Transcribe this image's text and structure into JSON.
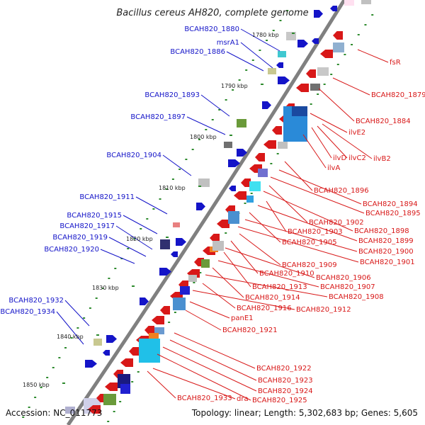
{
  "title": "Bacillus cereus AH820, complete genome",
  "colors": {
    "forward": "#1414c8",
    "reverse": "#d81818",
    "axis": "#888888",
    "tick": "#2e8b2e"
  },
  "ticks": [
    "1780 kbp",
    "1790 kbp",
    "1800 kbp",
    "1810 kbp",
    "1820 kbp",
    "1830 kbp",
    "1840 kbp",
    "1850 kbp"
  ],
  "forward_labels": [
    "BCAH820_1880",
    "msrA1",
    "BCAH820_1886",
    "BCAH820_1893",
    "BCAH820_1897",
    "BCAH820_1904",
    "BCAH820_1911",
    "BCAH820_1915",
    "BCAH820_1917",
    "BCAH820_1919",
    "BCAH820_1920",
    "BCAH820_1932",
    "BCAH820_1934"
  ],
  "reverse_labels": [
    "fsR",
    "BCAH820_1879",
    "BCAH820_1884",
    "ilvE2",
    "ilvD",
    "ilvC2",
    "ilvB2",
    "ilvA",
    "BCAH820_1896",
    "BCAH820_1894",
    "BCAH820_1895",
    "BCAH820_1902",
    "BCAH820_1898",
    "BCAH820_1903",
    "BCAH820_1899",
    "BCAH820_1905",
    "BCAH820_1900",
    "BCAH820_1901",
    "BCAH820_1909",
    "BCAH820_1910",
    "BCAH820_1906",
    "BCAH820_1913",
    "BCAH820_1907",
    "BCAH820_1914",
    "BCAH820_1908",
    "BCAH820_1916",
    "BCAH820_1912",
    "panE1",
    "BCAH820_1921",
    "BCAH820_1922",
    "BCAH820_1923",
    "BCAH820_1924",
    "BCAH820_1933",
    "dra",
    "BCAH820_1925"
  ],
  "footer": {
    "accession": "Accession: NC_011773",
    "stats": "Topology: linear; Length: 5,302,683 bp; Genes: 5,605"
  }
}
